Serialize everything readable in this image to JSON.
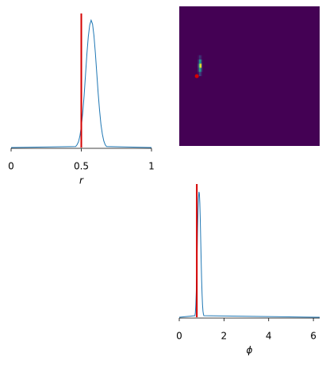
{
  "chart_data": [
    {
      "type": "line",
      "xlabel": "r",
      "x": [
        0,
        0.46,
        0.47,
        0.48,
        0.49,
        0.5,
        0.51,
        0.52,
        0.53,
        0.54,
        0.55,
        0.56,
        0.57,
        0.58,
        0.59,
        0.6,
        0.61,
        0.62,
        0.63,
        0.64,
        0.65,
        0.66,
        0.67,
        0.68,
        1
      ],
      "values": [
        0,
        0.1,
        0.3,
        0.6,
        1.2,
        2.2,
        3.6,
        5.4,
        7.6,
        9.8,
        11.6,
        12.8,
        13.3,
        12.9,
        11.7,
        9.9,
        7.8,
        5.7,
        3.9,
        2.4,
        1.4,
        0.7,
        0.3,
        0.1,
        0
      ],
      "color": "#1f77b4",
      "xlim": [
        0,
        1
      ],
      "xticks": [
        0,
        0.5,
        1
      ],
      "ylim": [
        0,
        14.0
      ],
      "reference": 0.5,
      "reference_color": "#d40000"
    },
    {
      "type": "heatmap",
      "xbins": [
        0.82,
        0.88,
        0.94,
        1.0,
        1.06
      ],
      "ybins": [
        0.5,
        0.53,
        0.56,
        0.59,
        0.62,
        0.65
      ],
      "values": [
        [
          0.05,
          0.2,
          0.15,
          0.02
        ],
        [
          0.15,
          0.55,
          0.45,
          0.08
        ],
        [
          0.2,
          0.8,
          1.0,
          0.1
        ],
        [
          0.1,
          0.5,
          0.45,
          0.05
        ],
        [
          0.03,
          0.15,
          0.12,
          0.01
        ]
      ],
      "xlim": [
        0,
        6.28
      ],
      "ylim": [
        0,
        1
      ],
      "clim": [
        0,
        1
      ],
      "colormap": [
        "#440154",
        "#3b528b",
        "#21918c",
        "#5ec962",
        "#fde725"
      ],
      "reference": [
        0.785,
        0.5
      ],
      "reference_color": "#d40000"
    },
    {
      "type": "line",
      "xlabel": "ϕ",
      "x": [
        0,
        0.7,
        0.72,
        0.74,
        0.76,
        0.78,
        0.8,
        0.82,
        0.84,
        0.86,
        0.88,
        0.9,
        0.92,
        0.94,
        0.96,
        0.98,
        1.0,
        1.02,
        1.04,
        1.06,
        1.08,
        1.1,
        6.28
      ],
      "values": [
        0,
        0.1,
        0.3,
        0.8,
        1.6,
        2.8,
        4.2,
        5.6,
        6.8,
        7.6,
        8.0,
        7.9,
        7.3,
        6.2,
        4.9,
        3.6,
        2.4,
        1.5,
        0.8,
        0.4,
        0.2,
        0.1,
        0
      ],
      "color": "#1f77b4",
      "xlim": [
        0,
        6.28
      ],
      "xticks": [
        0,
        2,
        4,
        6
      ],
      "ylim": [
        0,
        8.5
      ],
      "reference": 0.785,
      "reference_color": "#d40000"
    }
  ]
}
